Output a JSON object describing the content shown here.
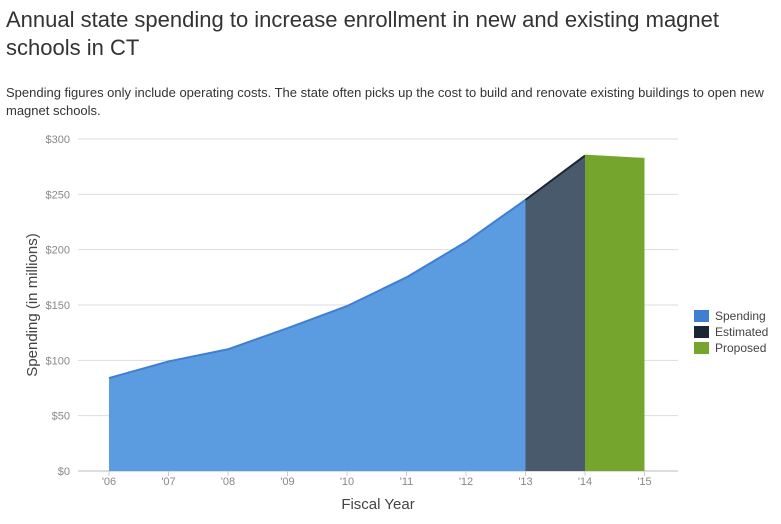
{
  "chart_data": {
    "type": "area",
    "title": "Annual state spending to increase enrollment in new and existing magnet schools in CT",
    "subtitle": "Spending figures only include operating costs. The state often picks up the cost to build and renovate existing buildings to open new magnet schools.",
    "xlabel": "Fiscal Year",
    "ylabel": "Spending (in millions)",
    "ylim": [
      0,
      300
    ],
    "yticks": [
      "$0",
      "$50",
      "$100",
      "$150",
      "$200",
      "$250",
      "$300"
    ],
    "categories": [
      "'06",
      "'07",
      "'08",
      "'09",
      "'10",
      "'11",
      "'12",
      "'13",
      "'14",
      "'15"
    ],
    "series": [
      {
        "name": "Spending",
        "color": "#5b9be0",
        "edge": "#3f7fd3",
        "x": [
          "'06",
          "'07",
          "'08",
          "'09",
          "'10",
          "'11",
          "'12",
          "'13"
        ],
        "values": [
          84,
          99,
          110,
          129,
          149,
          175,
          207,
          245
        ]
      },
      {
        "name": "Estimated",
        "color": "#485a6c",
        "edge": "#1a2633",
        "x": [
          "'13",
          "'14"
        ],
        "values": [
          245,
          285
        ]
      },
      {
        "name": "Proposed",
        "color": "#76a52e",
        "edge": "#76a52e",
        "x": [
          "'14",
          "'15"
        ],
        "values": [
          285,
          282
        ]
      }
    ],
    "legend": [
      "Spending",
      "Estimated",
      "Proposed"
    ],
    "legend_position": "right",
    "grid": true
  }
}
